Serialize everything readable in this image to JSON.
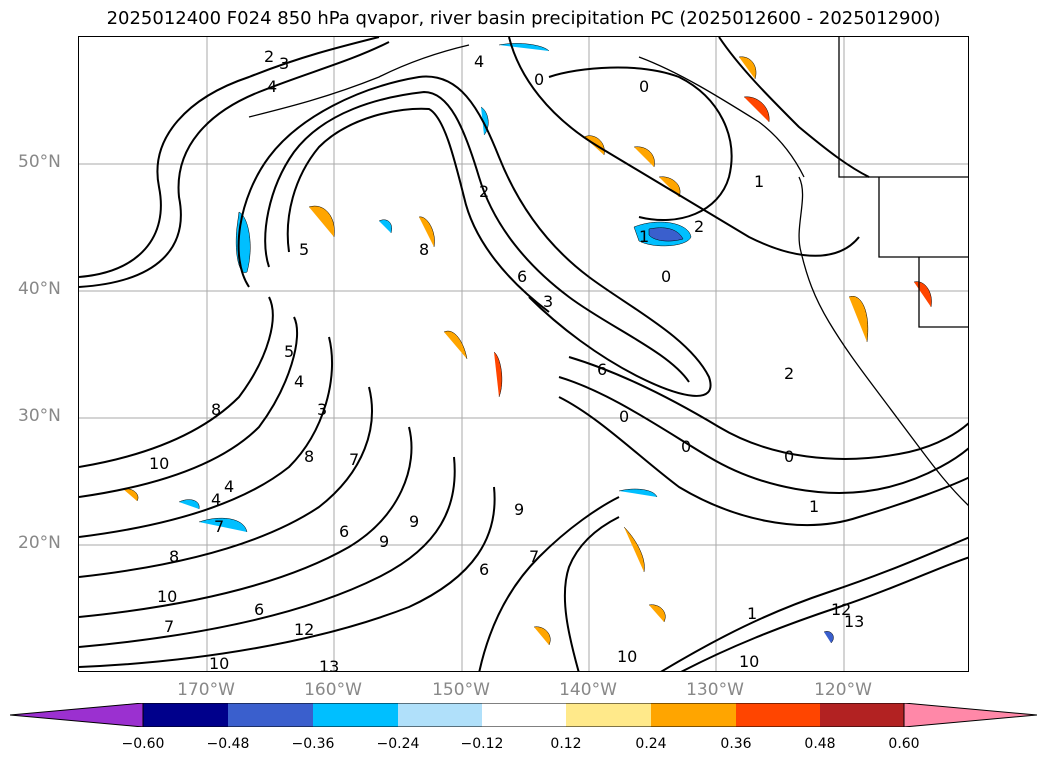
{
  "title": "2025012400 F024 850 hPa qvapor, river basin precipitation PC (2025012600 - 2025012900)",
  "map": {
    "lat_labels": [
      "50°N",
      "40°N",
      "30°N",
      "20°N"
    ],
    "lon_labels": [
      "170°W",
      "160°W",
      "150°W",
      "140°W",
      "130°W",
      "120°W"
    ],
    "contour_labels": [
      "2",
      "3",
      "4",
      "4",
      "0",
      "1",
      "0",
      "0",
      "2",
      "1",
      "5",
      "3",
      "2",
      "6",
      "6",
      "8",
      "8",
      "5",
      "4",
      "3",
      "8",
      "7",
      "10",
      "9",
      "4",
      "4",
      "7",
      "6",
      "9",
      "9",
      "6",
      "7",
      "0",
      "0",
      "0",
      "2",
      "1",
      "8",
      "10",
      "12",
      "13",
      "7",
      "6",
      "13",
      "12",
      "10",
      "10",
      "10",
      "1"
    ]
  },
  "colorbar": {
    "ticks": [
      "−0.60",
      "−0.48",
      "−0.36",
      "−0.24",
      "−0.12",
      "0.12",
      "0.24",
      "0.36",
      "0.48",
      "0.60"
    ],
    "colors": [
      "#9b30d0",
      "#00008b",
      "#3a5fcd",
      "#00bfff",
      "#b0e0fa",
      "#ffffff",
      "#ffe98a",
      "#ffa500",
      "#ff4500",
      "#b22222",
      "#ff88a8"
    ]
  }
}
